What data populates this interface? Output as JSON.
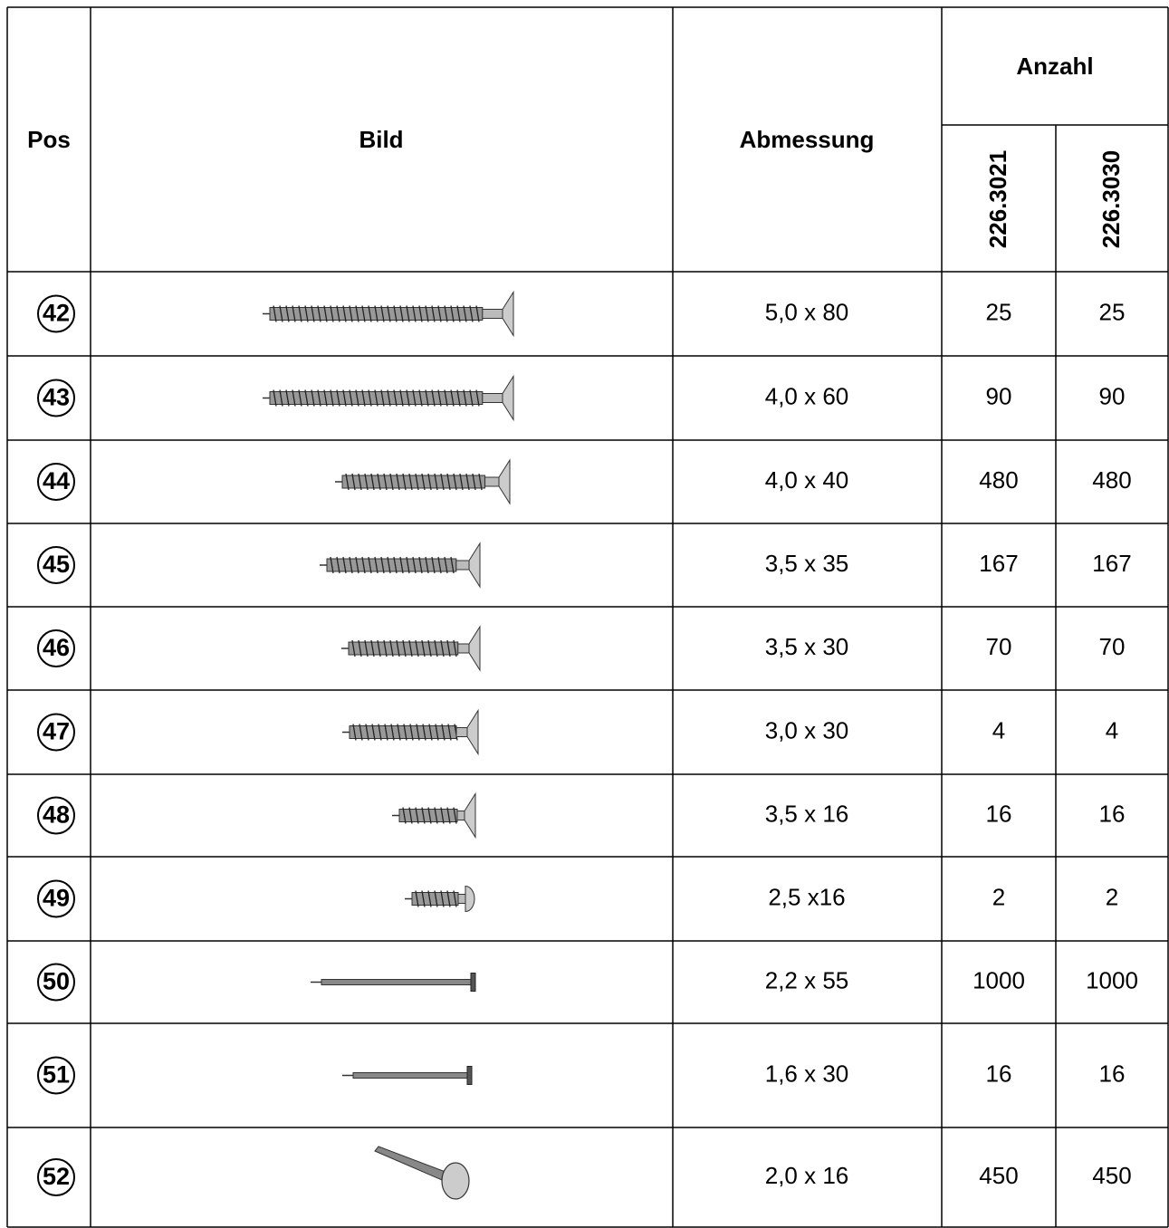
{
  "table": {
    "header": {
      "pos": "Pos",
      "bild": "Bild",
      "abmessung": "Abmessung",
      "anzahl": "Anzahl",
      "articles": [
        "226.3021",
        "226.3030"
      ]
    },
    "rows": [
      {
        "pos": 42,
        "abmessung": "5,0 x 80",
        "anzahl": [
          25,
          25
        ]
      },
      {
        "pos": 43,
        "abmessung": "4,0 x 60",
        "anzahl": [
          90,
          90
        ]
      },
      {
        "pos": 44,
        "abmessung": "4,0 x 40",
        "anzahl": [
          480,
          480
        ]
      },
      {
        "pos": 45,
        "abmessung": "3,5 x 35",
        "anzahl": [
          167,
          167
        ]
      },
      {
        "pos": 46,
        "abmessung": "3,5 x 30",
        "anzahl": [
          70,
          70
        ]
      },
      {
        "pos": 47,
        "abmessung": "3,0 x 30",
        "anzahl": [
          4,
          4
        ]
      },
      {
        "pos": 48,
        "abmessung": "3,5 x 16",
        "anzahl": [
          16,
          16
        ]
      },
      {
        "pos": 49,
        "abmessung": "2,5 x16",
        "anzahl": [
          2,
          2
        ]
      },
      {
        "pos": 50,
        "abmessung": "2,2 x 55",
        "anzahl": [
          1000,
          1000
        ]
      },
      {
        "pos": 51,
        "abmessung": "1,6 x 30",
        "anzahl": [
          16,
          16
        ]
      },
      {
        "pos": 52,
        "abmessung": "2,0 x 16",
        "anzahl": [
          450,
          450
        ]
      }
    ]
  }
}
